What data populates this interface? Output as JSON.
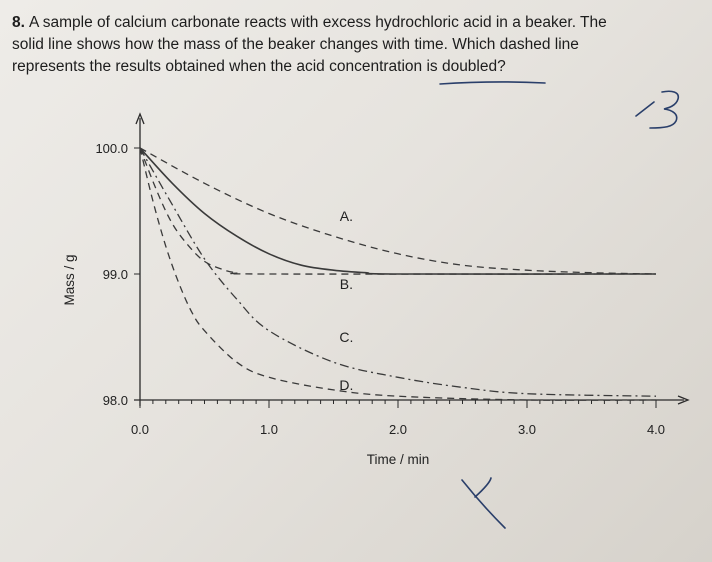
{
  "question": {
    "number": "8.",
    "lines": [
      "A sample of calcium carbonate reacts with excess hydrochloric acid in a beaker. The",
      "solid line shows how the mass of the beaker changes with time.  Which dashed line",
      "represents the results obtained when the acid concentration is doubled?"
    ]
  },
  "colors": {
    "ink": "#2a2a2a",
    "pen": "#2a3f6a",
    "paper": "#eceae6"
  },
  "chart_data": {
    "type": "line",
    "xlabel": "Time / min",
    "ylabel": "Mass / g",
    "xlim": [
      0,
      4
    ],
    "ylim": [
      98,
      100.2
    ],
    "x_ticks": [
      "0.0",
      "1.0",
      "2.0",
      "3.0",
      "4.0"
    ],
    "x_tick_values": [
      0,
      1,
      2,
      3,
      4
    ],
    "y_ticks": [
      "98.0",
      "99.0",
      "100.0"
    ],
    "y_tick_values": [
      98,
      99,
      100
    ],
    "grid": false,
    "series": [
      {
        "label": "",
        "style": "solid",
        "points": [
          [
            0,
            100
          ],
          [
            0.25,
            99.72
          ],
          [
            0.5,
            99.48
          ],
          [
            0.75,
            99.3
          ],
          [
            1.0,
            99.16
          ],
          [
            1.25,
            99.07
          ],
          [
            1.5,
            99.03
          ],
          [
            1.75,
            99.01
          ],
          [
            2.0,
            99.0
          ],
          [
            4.0,
            99.0
          ]
        ]
      },
      {
        "label": "A.",
        "style": "dashed",
        "points": [
          [
            0,
            100
          ],
          [
            0.5,
            99.72
          ],
          [
            1.0,
            99.48
          ],
          [
            1.5,
            99.3
          ],
          [
            2.0,
            99.16
          ],
          [
            2.5,
            99.07
          ],
          [
            3.0,
            99.03
          ],
          [
            3.5,
            99.01
          ],
          [
            4.0,
            99.0
          ]
        ]
      },
      {
        "label": "B.",
        "style": "dashed",
        "points": [
          [
            0,
            100
          ],
          [
            0.13,
            99.66
          ],
          [
            0.25,
            99.4
          ],
          [
            0.38,
            99.22
          ],
          [
            0.5,
            99.1
          ],
          [
            0.63,
            99.04
          ],
          [
            0.75,
            99.01
          ],
          [
            1.0,
            99.0
          ],
          [
            4.0,
            99.0
          ]
        ]
      },
      {
        "label": "C.",
        "style": "dash-dot",
        "points": [
          [
            0,
            100
          ],
          [
            0.25,
            99.55
          ],
          [
            0.5,
            99.12
          ],
          [
            0.75,
            98.8
          ],
          [
            1.0,
            98.55
          ],
          [
            1.5,
            98.3
          ],
          [
            2.0,
            98.18
          ],
          [
            2.5,
            98.1
          ],
          [
            3.0,
            98.05
          ],
          [
            4.0,
            98.03
          ]
        ]
      },
      {
        "label": "D.",
        "style": "dashed",
        "points": [
          [
            0,
            100
          ],
          [
            0.1,
            99.58
          ],
          [
            0.2,
            99.22
          ],
          [
            0.3,
            98.93
          ],
          [
            0.4,
            98.7
          ],
          [
            0.5,
            98.55
          ],
          [
            0.75,
            98.3
          ],
          [
            1.0,
            98.18
          ],
          [
            1.5,
            98.08
          ],
          [
            2.0,
            98.03
          ],
          [
            3.0,
            98.0
          ],
          [
            4.0,
            98.0
          ]
        ]
      }
    ],
    "label_positions": [
      {
        "label": "A.",
        "at": [
          1.6,
          99.42
        ]
      },
      {
        "label": "B.",
        "at": [
          1.6,
          98.88
        ]
      },
      {
        "label": "C.",
        "at": [
          1.6,
          98.46
        ]
      },
      {
        "label": "D.",
        "at": [
          1.6,
          98.08
        ]
      }
    ]
  }
}
